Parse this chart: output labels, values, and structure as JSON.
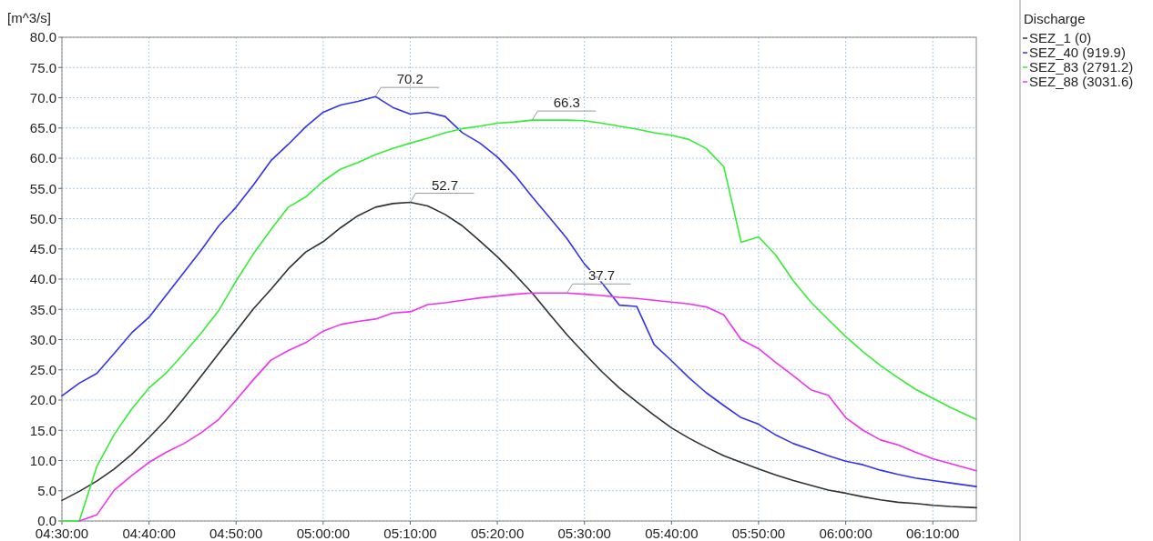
{
  "chart_data": {
    "type": "line",
    "ylabel": "[m^3/s]",
    "legend_title": "Discharge",
    "legend": "right",
    "grid": true,
    "marker": "none",
    "line_style": "solid",
    "x": [
      4.5,
      4.5333,
      4.5667,
      4.6,
      4.6333,
      4.6667,
      4.7,
      4.7333,
      4.7667,
      4.8,
      4.8333,
      4.8667,
      4.9,
      4.9333,
      4.9667,
      5,
      5.0333,
      5.0667,
      5.1,
      5.1333,
      5.1667,
      5.2,
      5.2333,
      5.2667,
      5.3,
      5.3333,
      5.3667,
      5.4,
      5.4333,
      5.4667,
      5.5,
      5.5333,
      5.5667,
      5.6,
      5.6333,
      5.6667,
      5.7,
      5.7333,
      5.7667,
      5.8,
      5.8333,
      5.8667,
      5.9,
      5.9333,
      5.9667,
      6,
      6.0333,
      6.0667,
      6.1,
      6.1333,
      6.1667,
      6.2,
      6.25
    ],
    "xlim": [
      4.5,
      6.25
    ],
    "xticks": [
      {
        "value": 4.5,
        "label": "04:30:00"
      },
      {
        "value": 4.6667,
        "label": "04:40:00"
      },
      {
        "value": 4.8333,
        "label": "04:50:00"
      },
      {
        "value": 5,
        "label": "05:00:00"
      },
      {
        "value": 5.1667,
        "label": "05:10:00"
      },
      {
        "value": 5.3333,
        "label": "05:20:00"
      },
      {
        "value": 5.5,
        "label": "05:30:00"
      },
      {
        "value": 5.6667,
        "label": "05:40:00"
      },
      {
        "value": 5.8333,
        "label": "05:50:00"
      },
      {
        "value": 6,
        "label": "06:00:00"
      },
      {
        "value": 6.1667,
        "label": "06:10:00"
      }
    ],
    "ylim": [
      0,
      80
    ],
    "yticks": [
      {
        "value": 0,
        "label": "0.0"
      },
      {
        "value": 5,
        "label": "5.0"
      },
      {
        "value": 10,
        "label": "10.0"
      },
      {
        "value": 15,
        "label": "15.0"
      },
      {
        "value": 20,
        "label": "20.0"
      },
      {
        "value": 25,
        "label": "25.0"
      },
      {
        "value": 30,
        "label": "30.0"
      },
      {
        "value": 35,
        "label": "35.0"
      },
      {
        "value": 40,
        "label": "40.0"
      },
      {
        "value": 45,
        "label": "45.0"
      },
      {
        "value": 50,
        "label": "50.0"
      },
      {
        "value": 55,
        "label": "55.0"
      },
      {
        "value": 60,
        "label": "60.0"
      },
      {
        "value": 65,
        "label": "65.0"
      },
      {
        "value": 70,
        "label": "70.0"
      },
      {
        "value": 75,
        "label": "75.0"
      },
      {
        "value": 80,
        "label": "80.0"
      }
    ],
    "series": [
      {
        "name": "SEZ_1 (0)",
        "color": "#303030",
        "values": [
          3.4,
          4.9,
          6.6,
          8.6,
          11.0,
          13.8,
          16.8,
          20.3,
          24.0,
          27.7,
          31.4,
          35.1,
          38.3,
          41.7,
          44.5,
          46.2,
          48.5,
          50.5,
          51.9,
          52.5,
          52.7,
          52.1,
          50.7,
          48.8,
          46.3,
          43.7,
          40.8,
          37.7,
          34.2,
          30.8,
          27.7,
          24.7,
          22.0,
          19.7,
          17.5,
          15.4,
          13.7,
          12.2,
          10.8,
          9.7,
          8.6,
          7.6,
          6.7,
          5.9,
          5.1,
          4.6,
          4.0,
          3.5,
          3.1,
          2.9,
          2.6,
          2.4,
          2.2
        ]
      },
      {
        "name": "SEZ_40 (919.9)",
        "color": "#3333ee",
        "values": [
          20.7,
          22.8,
          24.4,
          27.7,
          31.1,
          33.7,
          37.4,
          41.1,
          44.8,
          48.8,
          51.9,
          55.6,
          59.6,
          62.3,
          65.2,
          67.6,
          68.8,
          69.4,
          70.2,
          68.4,
          67.3,
          67.6,
          66.9,
          64.2,
          62.5,
          60.2,
          57.2,
          53.6,
          50.2,
          46.7,
          42.5,
          39.4,
          35.7,
          35.5,
          29.2,
          26.5,
          23.7,
          21.2,
          19.1,
          17.1,
          16.0,
          14.2,
          12.8,
          11.8,
          10.8,
          9.9,
          9.3,
          8.4,
          7.7,
          7.1,
          6.7,
          6.3,
          5.7
        ]
      },
      {
        "name": "SEZ_83 (2791.2)",
        "color": "#33ee33",
        "values": [
          0,
          0,
          9.0,
          14.3,
          18.5,
          22.0,
          24.5,
          27.7,
          31.1,
          34.8,
          39.7,
          44.2,
          48.2,
          51.9,
          53.6,
          56.2,
          58.2,
          59.3,
          60.6,
          61.6,
          62.5,
          63.3,
          64.2,
          64.9,
          65.3,
          65.8,
          66.0,
          66.3,
          66.3,
          66.3,
          66.2,
          65.8,
          65.3,
          64.8,
          64.2,
          63.8,
          63.1,
          61.6,
          58.6,
          46.1,
          47.0,
          43.9,
          39.7,
          36.2,
          33.3,
          30.5,
          28.0,
          25.7,
          23.7,
          21.8,
          20.3,
          18.8,
          16.8
        ]
      },
      {
        "name": "SEZ_88 (3031.6)",
        "color": "#ee33ee",
        "values": [
          null,
          0,
          1.0,
          5.1,
          7.5,
          9.7,
          11.4,
          12.8,
          14.6,
          16.8,
          20.0,
          23.4,
          26.6,
          28.2,
          29.5,
          31.4,
          32.5,
          33.0,
          33.4,
          34.4,
          34.6,
          35.8,
          36.1,
          36.5,
          36.9,
          37.2,
          37.5,
          37.7,
          37.7,
          37.7,
          37.5,
          37.3,
          37.0,
          36.8,
          36.5,
          36.2,
          35.9,
          35.4,
          34.1,
          30.0,
          28.5,
          26.2,
          24.0,
          21.7,
          20.8,
          17.1,
          15.0,
          13.4,
          12.6,
          11.4,
          10.3,
          9.5,
          8.3
        ]
      }
    ],
    "annotations": [
      {
        "text": "70.2",
        "x": 5.1,
        "y": 70.2
      },
      {
        "text": "66.3",
        "x": 5.4,
        "y": 66.3
      },
      {
        "text": "52.7",
        "x": 5.1667,
        "y": 52.7
      },
      {
        "text": "37.7",
        "x": 5.4667,
        "y": 37.7
      }
    ]
  }
}
